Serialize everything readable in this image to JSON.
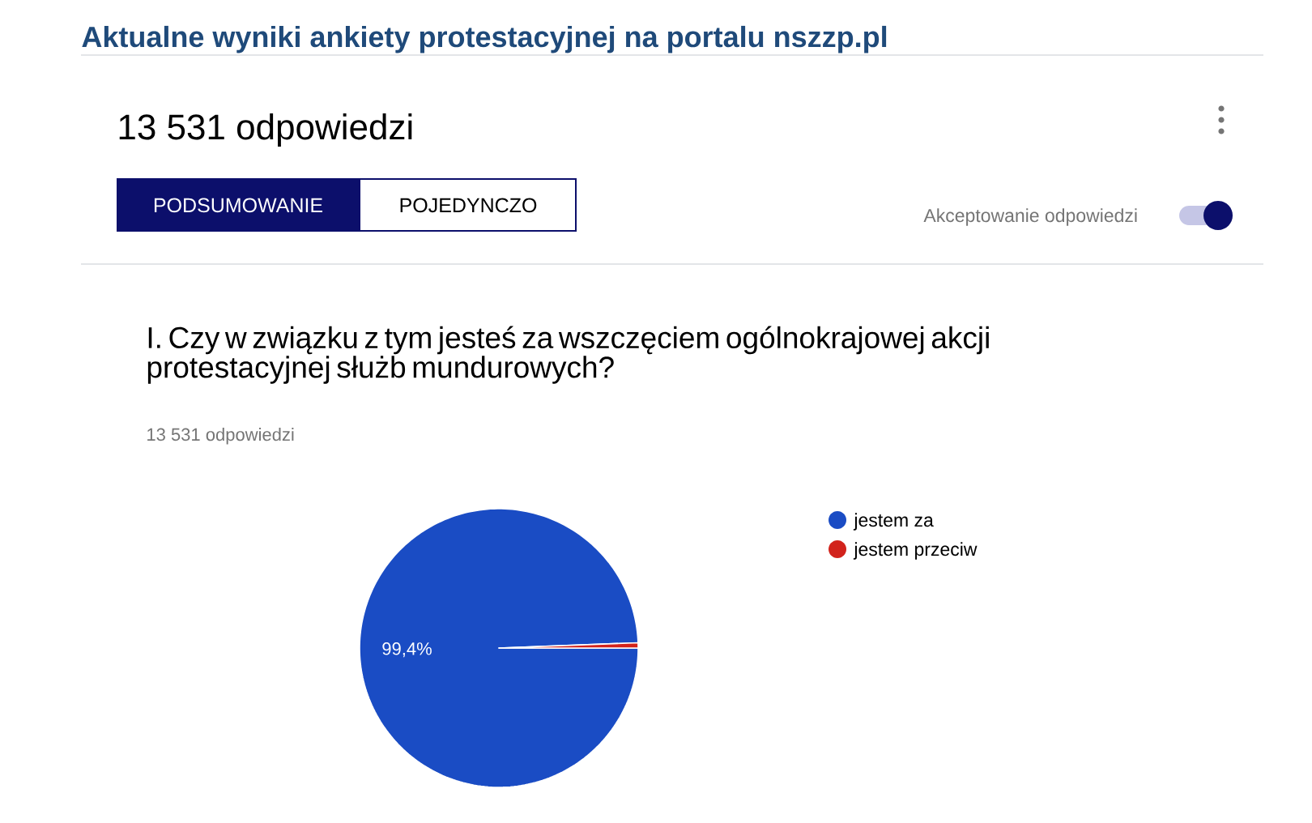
{
  "chart_data": {
    "type": "pie",
    "title": "I. Czy w związku z tym jesteś za wszczęciem ogólnokrajowej akcji protestacyjnej służb mundurowych?",
    "subtitle": "13 531 odpowiedzi",
    "annotations": [
      "Aktualne wyniki ankiety protestacyjnej na portalu nszzp.pl",
      "13 531 odpowiedzi",
      "PODSUMOWANIE",
      "POJEDYNCZO",
      "Akceptowanie odpowiedzi"
    ],
    "categories": [
      "jestem za",
      "jestem przeciw"
    ],
    "values": [
      99.4,
      0.6
    ],
    "colors": [
      "#1a4cc4",
      "#d2231c"
    ],
    "value_labels": [
      "99,4%",
      null
    ],
    "legend": "right"
  }
}
